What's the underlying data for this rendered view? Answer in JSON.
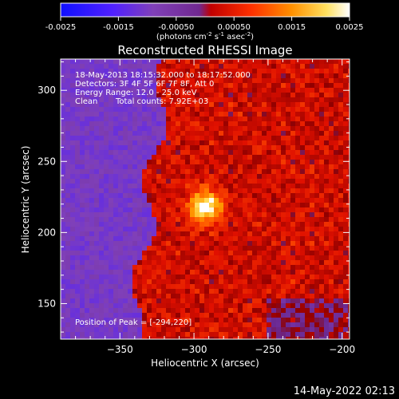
{
  "chart_data": {
    "type": "heatmap",
    "title": "Reconstructed RHESSI Image",
    "xlabel": "Heliocentric X (arcsec)",
    "ylabel": "Heliocentric Y (arcsec)",
    "xlim": [
      -390,
      -195
    ],
    "ylim": [
      125,
      322
    ],
    "x_ticks": [
      -350,
      -300,
      -250,
      -200
    ],
    "y_ticks": [
      150,
      200,
      250,
      300
    ],
    "colorbar": {
      "range": [
        -0.0025,
        0.0025
      ],
      "ticks": [
        -0.0025,
        -0.0015,
        -0.0005,
        0.0005,
        0.0015,
        0.0025
      ],
      "tick_labels": [
        "-0.0025",
        "-0.0015",
        "-0.00050",
        "0.00050",
        "0.0015",
        "0.0025"
      ],
      "unit_label_parts": [
        "(photons cm",
        "-2",
        " s",
        "-1",
        " asec",
        "-2",
        ")"
      ],
      "colormap": [
        "#1010ff",
        "#5020ff",
        "#8040b8",
        "#702890",
        "#d00000",
        "#ff4000",
        "#ff9000",
        "#ffe060",
        "#ffffff"
      ]
    },
    "annotations": {
      "time_range": "18-May-2013 18:15:32.000 to 18:17:52.000",
      "detectors": "Detectors: 3F 4F 5F 6F 7F 8F, Att 0",
      "energy_range": "Energy Range: 12.0 - 25.0 keV",
      "method": "Clean",
      "total_counts": "Total counts: 7.92E+03",
      "peak": "Position of Peak = [-294,220]"
    },
    "peak_position": [
      -294,
      220
    ],
    "grid": false,
    "legend": "none"
  },
  "footer": {
    "timestamp": "14-May-2022 02:13"
  }
}
